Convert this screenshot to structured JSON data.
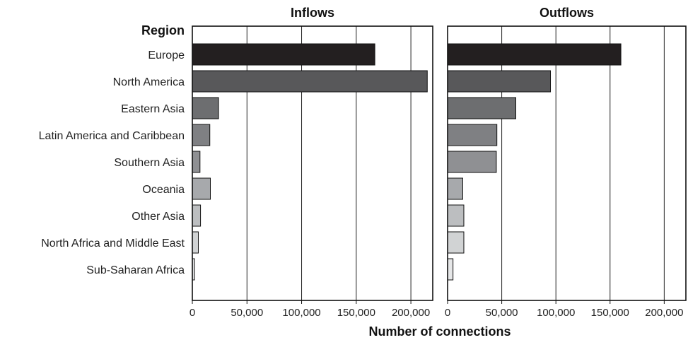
{
  "chart_data": {
    "type": "bar",
    "orientation": "horizontal",
    "category_header": "Region",
    "xlabel": "Number of connections",
    "categories": [
      "Europe",
      "North America",
      "Eastern Asia",
      "Latin America and Caribbean",
      "Southern Asia",
      "Oceania",
      "Other Asia",
      "North Africa and Middle East",
      "Sub-Saharan Africa"
    ],
    "category_colors": [
      "#231f20",
      "#58585a",
      "#6d6e70",
      "#7f8083",
      "#8f9093",
      "#a7a9ac",
      "#bcbec0",
      "#d1d3d4",
      "#e6e7e8"
    ],
    "xlim": [
      0,
      220000
    ],
    "xticks": [
      0,
      50000,
      100000,
      150000,
      200000
    ],
    "xtick_labels": [
      "0",
      "50,000",
      "100,000",
      "150,000",
      "200,000"
    ],
    "grid": true,
    "panels": [
      {
        "title": "Inflows",
        "values": [
          167000,
          215000,
          24000,
          16000,
          7000,
          16500,
          7500,
          5500,
          2000
        ]
      },
      {
        "title": "Outflows",
        "values": [
          160000,
          95000,
          63000,
          45500,
          45000,
          14000,
          15000,
          15000,
          5000
        ]
      }
    ]
  }
}
